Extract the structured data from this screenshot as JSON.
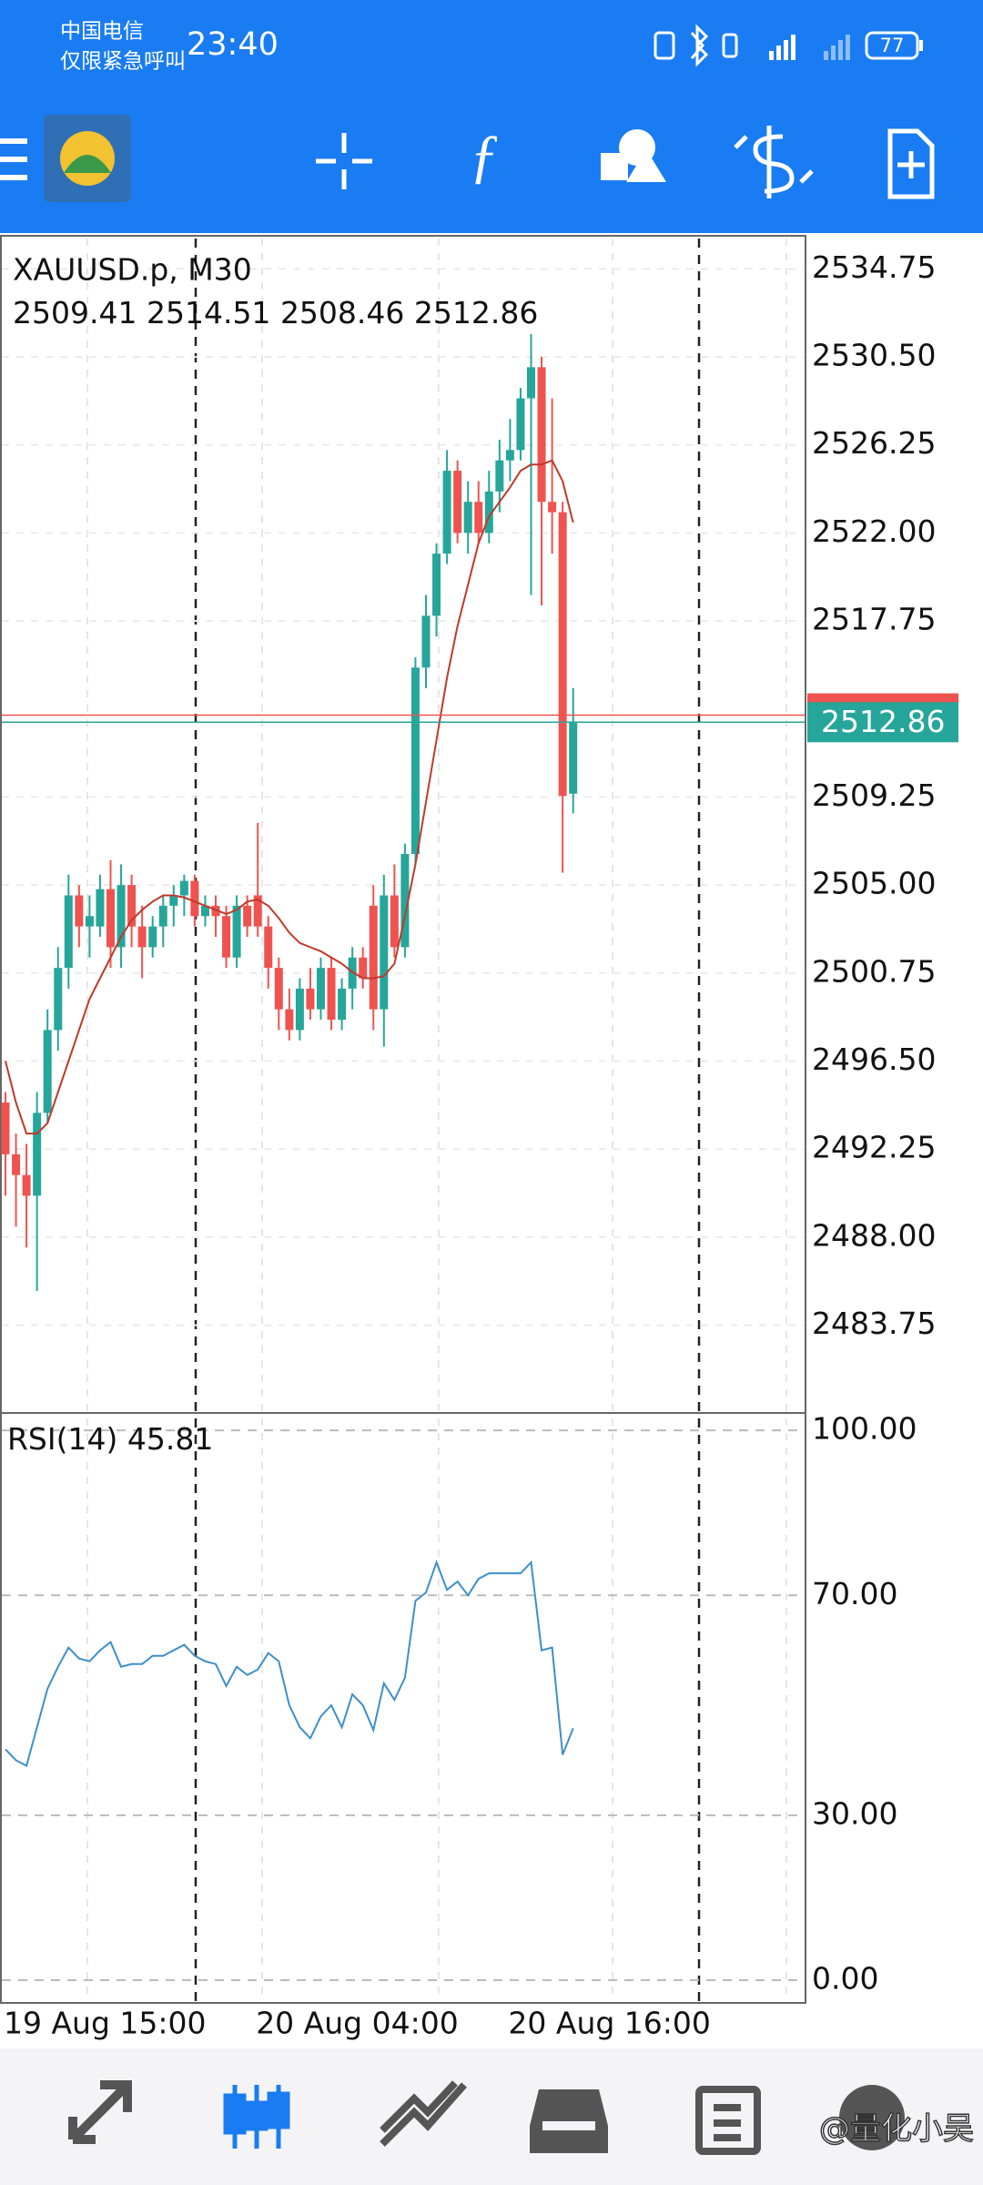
{
  "status_bar": {
    "carrier": "中国电信",
    "carrier_note": "仅限紧急呼叫",
    "time": "23:40",
    "battery": "77"
  },
  "chart_data": [
    {
      "type": "candlestick",
      "title": "XAUUSD.p, M30",
      "categories": [
        "19 Aug 15:00",
        null,
        null,
        null,
        null,
        null,
        null,
        null,
        null,
        null,
        null,
        null,
        null,
        null,
        null,
        null,
        null,
        null,
        null,
        null,
        null,
        null,
        null,
        null,
        "20 Aug 04:00",
        null,
        null,
        null,
        null,
        null,
        null,
        null,
        null,
        null,
        null,
        null,
        null,
        null,
        null,
        null,
        null,
        null,
        null,
        null,
        null,
        null,
        null,
        null,
        "20 Aug 16:00",
        null,
        null,
        null,
        null,
        null,
        null
      ],
      "open": [
        2494.5,
        2492,
        2491,
        2490,
        2494,
        2498,
        2501,
        2504.5,
        2503,
        2503,
        2504.8,
        2502,
        2505,
        2503,
        2502,
        2503,
        2504,
        2504.5,
        2505.2,
        2503.5,
        2504,
        2503.5,
        2501.5,
        2504,
        2504.5,
        2503,
        2501,
        2499,
        2498,
        2500,
        2499,
        2501,
        2498.5,
        2500,
        2501.5,
        2504,
        2499,
        2504.5,
        2502,
        2506.5,
        2515.5,
        2518,
        2521,
        2525,
        2522,
        2523.5,
        2522,
        2524,
        2525.5,
        2526,
        2528.5,
        2530,
        2523.5,
        2523,
        2509.41
      ],
      "high": [
        2495,
        2493,
        2492.5,
        2495,
        2499,
        2502,
        2505.5,
        2505,
        2504.5,
        2505.5,
        2506.2,
        2506,
        2505.5,
        2504,
        2503.5,
        2504.5,
        2505,
        2505.5,
        2505.5,
        2504.5,
        2504.5,
        2504,
        2504.5,
        2504.5,
        2508,
        2503.5,
        2501.5,
        2500,
        2500.5,
        2501,
        2501.5,
        2501.5,
        2500.5,
        2502,
        2502,
        2505,
        2505.5,
        2506,
        2507,
        2516,
        2519,
        2521.5,
        2526,
        2525.5,
        2524.5,
        2524.5,
        2525,
        2526.5,
        2527.5,
        2529,
        2531.6,
        2530.5,
        2528.5,
        2523.5,
        2514.51
      ],
      "low": [
        2490,
        2488.5,
        2487.5,
        2485.4,
        2493.5,
        2497,
        2500,
        2502,
        2501.5,
        2502.5,
        2501,
        2501,
        2502,
        2500.5,
        2501.5,
        2502,
        2503,
        2503.5,
        2503,
        2503,
        2502.5,
        2501,
        2501,
        2502.5,
        2502.5,
        2500,
        2498,
        2497.5,
        2497.5,
        2498.5,
        2498.5,
        2498,
        2498,
        2499,
        2500,
        2498,
        2497.2,
        2501.5,
        2501.5,
        2506,
        2514.5,
        2517,
        2520.5,
        2521.5,
        2521,
        2521.5,
        2521.5,
        2523,
        2524.5,
        2525.5,
        2519,
        2518.5,
        2521,
        2505.6,
        2508.46
      ],
      "close": [
        2492,
        2491,
        2490,
        2494,
        2498,
        2501,
        2504.5,
        2503,
        2503.5,
        2504.8,
        2502,
        2505,
        2503,
        2502,
        2503,
        2504,
        2504.5,
        2505.2,
        2503.5,
        2504,
        2503.5,
        2501.5,
        2504,
        2503,
        2503,
        2501,
        2499,
        2498,
        2500,
        2499,
        2501,
        2498.5,
        2500,
        2501.5,
        2500.5,
        2499,
        2504.5,
        2502,
        2506.5,
        2515.5,
        2518,
        2521,
        2525,
        2522,
        2523.5,
        2522,
        2524,
        2525.5,
        2526,
        2528.5,
        2530,
        2523.5,
        2523,
        2509.3,
        2512.86
      ],
      "up_color": "#26a69a",
      "down_color": "#ef5350",
      "overlay": {
        "color": "#c0392b",
        "values": [
          2496.5,
          2494.5,
          2493,
          2493,
          2493.5,
          2495,
          2496.5,
          2498,
          2499.5,
          2500.5,
          2501.5,
          2502.5,
          2503.3,
          2503.8,
          2504.2,
          2504.5,
          2504.5,
          2504.4,
          2504.2,
          2504,
          2503.8,
          2503.6,
          2503.8,
          2504.2,
          2504.3,
          2504,
          2503.4,
          2502.7,
          2502.2,
          2502,
          2501.8,
          2501.5,
          2501.2,
          2500.8,
          2500.5,
          2500.5,
          2500.6,
          2501.2,
          2503.5,
          2506,
          2509,
          2512,
          2515,
          2517.5,
          2519.5,
          2521.5,
          2522.8,
          2523.5,
          2524.2,
          2525,
          2525.3,
          2525.3,
          2525.5,
          2524.5,
          2522.5
        ]
      },
      "bid": 2512.86,
      "bid_color": "#26a69a",
      "ask": 2513.2,
      "ask_color": "#ef5350",
      "ylim": [
        2479.6,
        2536.3
      ],
      "yticks": [
        2483.75,
        {
          "value": 2488,
          "label": "2488.00"
        },
        2492.25,
        {
          "value": 2496.5,
          "label": "2496.50"
        },
        2500.75,
        {
          "value": 2505,
          "label": "2505.00"
        },
        2509.25,
        2517.75,
        {
          "value": 2522,
          "label": "2522.00"
        },
        2526.25,
        {
          "value": 2530.5,
          "label": "2530.50"
        },
        2534.75
      ],
      "grid": true
    },
    {
      "type": "line",
      "title": "RSI(14)",
      "color": "#3d8fc9",
      "values": [
        42,
        40,
        39,
        46,
        53,
        57,
        60.5,
        58.5,
        58,
        60,
        61.5,
        57,
        57.5,
        57.5,
        59,
        59,
        60,
        61,
        59,
        58,
        57.5,
        53.5,
        57,
        55.5,
        56.5,
        59.5,
        58,
        50,
        46,
        44,
        48,
        50,
        46,
        52,
        50,
        45.5,
        54,
        51,
        55,
        69,
        70.5,
        76,
        71,
        72.5,
        70,
        73,
        74,
        74,
        74,
        74,
        76,
        60,
        60.5,
        41,
        45.81
      ],
      "ylim": [
        -3.8,
        103
      ],
      "yticks": [
        {
          "value": 0,
          "label": "0.00"
        },
        {
          "value": 30,
          "label": "30.00"
        },
        {
          "value": 70,
          "label": "70.00"
        },
        {
          "value": 100,
          "label": "100.00"
        }
      ],
      "grid": true
    }
  ],
  "watermark": "@量化小吴"
}
